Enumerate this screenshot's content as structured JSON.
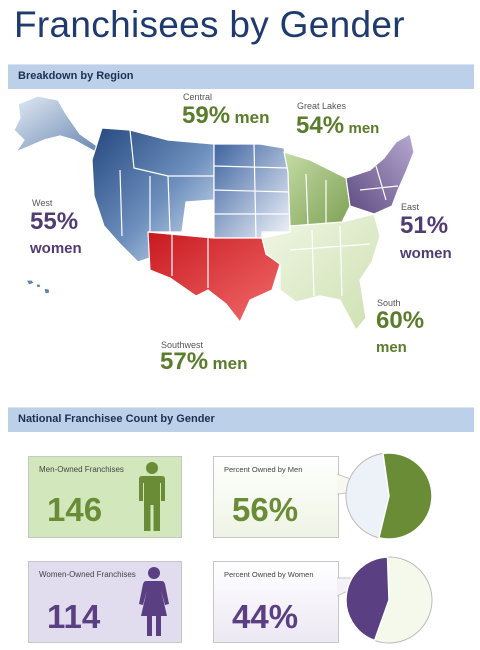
{
  "title": "Franchisees by Gender",
  "sections": {
    "region": "Breakdown by Region",
    "national": "National Franchisee Count by Gender"
  },
  "regions": {
    "central": {
      "name": "Central",
      "value": "59%",
      "unit": "men"
    },
    "great_lakes": {
      "name": "Great Lakes",
      "value": "54%",
      "unit": "men"
    },
    "west": {
      "name": "West",
      "value": "55%",
      "unit": "women"
    },
    "east": {
      "name": "East",
      "value": "51%",
      "unit": "women"
    },
    "south": {
      "name": "South",
      "value": "60%",
      "unit": "men"
    },
    "southwest": {
      "name": "Southwest",
      "value": "57%",
      "unit": "men"
    }
  },
  "cards": {
    "men_count_label": "Men-Owned Franchises",
    "men_count": "146",
    "women_count_label": "Women-Owned Franchises",
    "women_count": "114",
    "men_pct_label": "Percent Owned by Men",
    "men_pct": "56%",
    "women_pct_label": "Percent Owned by Women",
    "women_pct": "44%"
  },
  "chart_data": {
    "type": "pie",
    "title": "National Franchisee Count by Gender",
    "categories": [
      "Men-Owned Franchises",
      "Women-Owned Franchises"
    ],
    "values": [
      146,
      114
    ],
    "percent": [
      56,
      44
    ]
  },
  "colors": {
    "men": "#6a8c36",
    "women": "#5a3f82",
    "men_card": "#d3e7bd",
    "women_card": "#e2dcef",
    "band": "#bcd0ea"
  }
}
